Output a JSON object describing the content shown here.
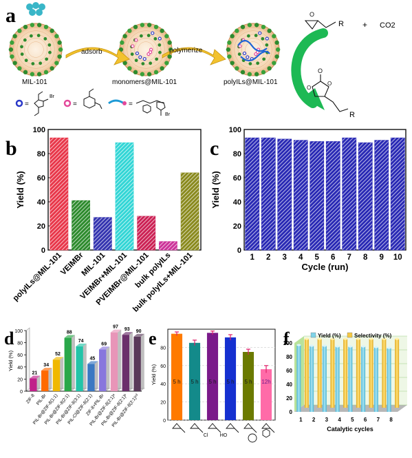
{
  "figure": {
    "panel_letters": [
      "a",
      "b",
      "c",
      "d",
      "e",
      "f"
    ],
    "scheme": {
      "stage_labels": [
        "MIL-101",
        "monomers@MIL-101",
        "polyILs@MIL-101"
      ],
      "arrow_labels": [
        "adsorb",
        "polymerize"
      ],
      "reactant_r": "R",
      "plus": "+",
      "co2": "CO2",
      "product_r": "R",
      "legend_ion": "Br",
      "colors": {
        "mof_green": "#2e8b2e",
        "mof_orange": "#e08a3c",
        "arrow_yellow": "#f2c22e",
        "arrow_green": "#1db954"
      }
    }
  },
  "chart_data": [
    {
      "panel": "b",
      "type": "bar",
      "ylabel": "Yield (%)",
      "ylim": [
        0,
        100
      ],
      "yticks": [
        0,
        20,
        40,
        60,
        80,
        100
      ],
      "categories": [
        "polyILs@MIL-101",
        "VEIMBr",
        "MIL-101",
        "VEIMBr+MIL-101",
        "PVEIMBr@MIL-101",
        "bulk polyILs",
        "bulk polyILs+MIL-101"
      ],
      "values": [
        93,
        41,
        27,
        89,
        28,
        7,
        64
      ],
      "colors": [
        "#e8374a",
        "#2e8b2e",
        "#3535b0",
        "#33d6d6",
        "#cc2255",
        "#cc3399",
        "#8a8a1e"
      ]
    },
    {
      "panel": "c",
      "type": "bar",
      "xlabel": "Cycle (run)",
      "ylabel": "Yield (%)",
      "ylim": [
        0,
        100
      ],
      "yticks": [
        0,
        20,
        40,
        60,
        80,
        100
      ],
      "categories": [
        "1",
        "2",
        "3",
        "4",
        "5",
        "6",
        "7",
        "8",
        "9",
        "10"
      ],
      "values": [
        93,
        93,
        92,
        91,
        90,
        90,
        93,
        89,
        91,
        93
      ],
      "color": "#2a2ab5"
    },
    {
      "panel": "d",
      "type": "bar",
      "ylabel": "Yield (%)",
      "ylim": [
        0,
        100
      ],
      "yticks": [
        0,
        20,
        40,
        60,
        80,
        100
      ],
      "categories": [
        "ZIF-8",
        "PIL-Br",
        "PIL-Br@ZIF-8(1:1)",
        "PIL-Br@ZIF-8(2:1)",
        "PIL-Br@ZIF-8(3:1)",
        "PIL-Cl@ZIF-8(2:1)",
        "ZIF-8+PIL-Br",
        "PIL-Br@ZIF-8(2:1)ᵃ",
        "PIL-Br@ZIF-8(2:1)ᵇ",
        "PIL-Br@ZIF-8(2:1)ᶜᵈ"
      ],
      "values": [
        21,
        34,
        52,
        88,
        74,
        45,
        69,
        97,
        93,
        90
      ],
      "colors": [
        "#c0208a",
        "#ff6a00",
        "#f0b800",
        "#2aa84a",
        "#22c4a8",
        "#3b78c2",
        "#8877dd",
        "#e895b8",
        "#6b2f6b",
        "#5a3a5a"
      ]
    },
    {
      "panel": "e",
      "type": "bar",
      "ylabel": "Yield (%)",
      "ylim": [
        0,
        100
      ],
      "yticks": [
        0,
        20,
        40,
        60,
        80
      ],
      "values": [
        95,
        85,
        96,
        91,
        75,
        56
      ],
      "errors": [
        2,
        3,
        2,
        3,
        3,
        4
      ],
      "bar_labels": [
        "5 h",
        "5 h",
        "5 h",
        "5 h",
        "5 h",
        "12h"
      ],
      "substituent_labels": [
        "",
        "",
        "Cl",
        "HO",
        "",
        ""
      ],
      "colors": [
        "#ff7a00",
        "#138a8a",
        "#7a1a8a",
        "#1530d0",
        "#6b7a00",
        "#ff6ba8"
      ],
      "grid": true
    },
    {
      "panel": "f",
      "type": "bar",
      "xlabel": "Catalytic cycles",
      "ylim": [
        0,
        100
      ],
      "yticks": [
        0,
        20,
        40,
        60,
        80,
        100
      ],
      "categories": [
        "1",
        "2",
        "3",
        "4",
        "5",
        "6",
        "7",
        "8"
      ],
      "series": [
        {
          "name": "Yield (%)",
          "values": [
            97,
            96,
            96,
            95,
            95,
            95,
            94,
            93
          ],
          "color": "#7fd3e8"
        },
        {
          "name": "Selectivity (%)",
          "values": [
            100,
            100,
            100,
            100,
            100,
            100,
            100,
            100
          ],
          "color": "#f5c842"
        }
      ],
      "legend": "top",
      "wall_color": "#b9e29a"
    }
  ]
}
